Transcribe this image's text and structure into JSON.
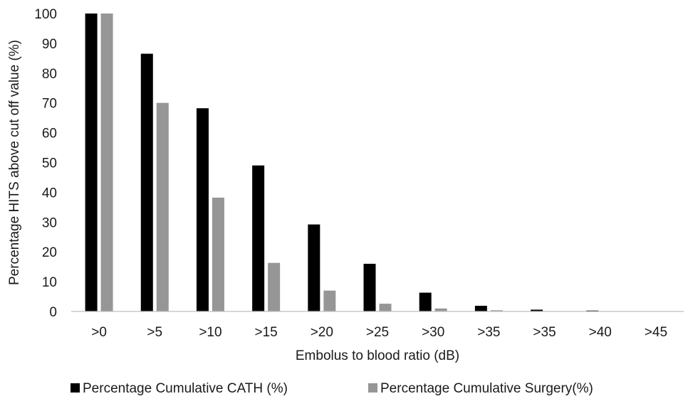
{
  "chart_data": {
    "type": "bar",
    "title": "",
    "xlabel": "Embolus to blood ratio (dB)",
    "ylabel": "Percentage HITS above cut off value (%)",
    "categories": [
      ">0",
      ">5",
      ">10",
      ">15",
      ">20",
      ">25",
      ">30",
      ">35",
      ">35",
      ">40",
      ">45"
    ],
    "series": [
      {
        "name": "Percentage Cumulative CATH (%)",
        "color": "#000000",
        "values": [
          100,
          86.5,
          68.2,
          49.0,
          29.2,
          16.0,
          6.3,
          1.9,
          0.6,
          0.3,
          0
        ]
      },
      {
        "name": "Percentage Cumulative Surgery(%)",
        "color": "#969696",
        "values": [
          100,
          70.0,
          38.2,
          16.3,
          7.0,
          2.6,
          1.0,
          0.4,
          0,
          0,
          0
        ]
      }
    ],
    "ylim": [
      0,
      100
    ],
    "yticks": [
      0,
      10,
      20,
      30,
      40,
      50,
      60,
      70,
      80,
      90,
      100
    ],
    "grid": false,
    "legend_position": "bottom"
  }
}
